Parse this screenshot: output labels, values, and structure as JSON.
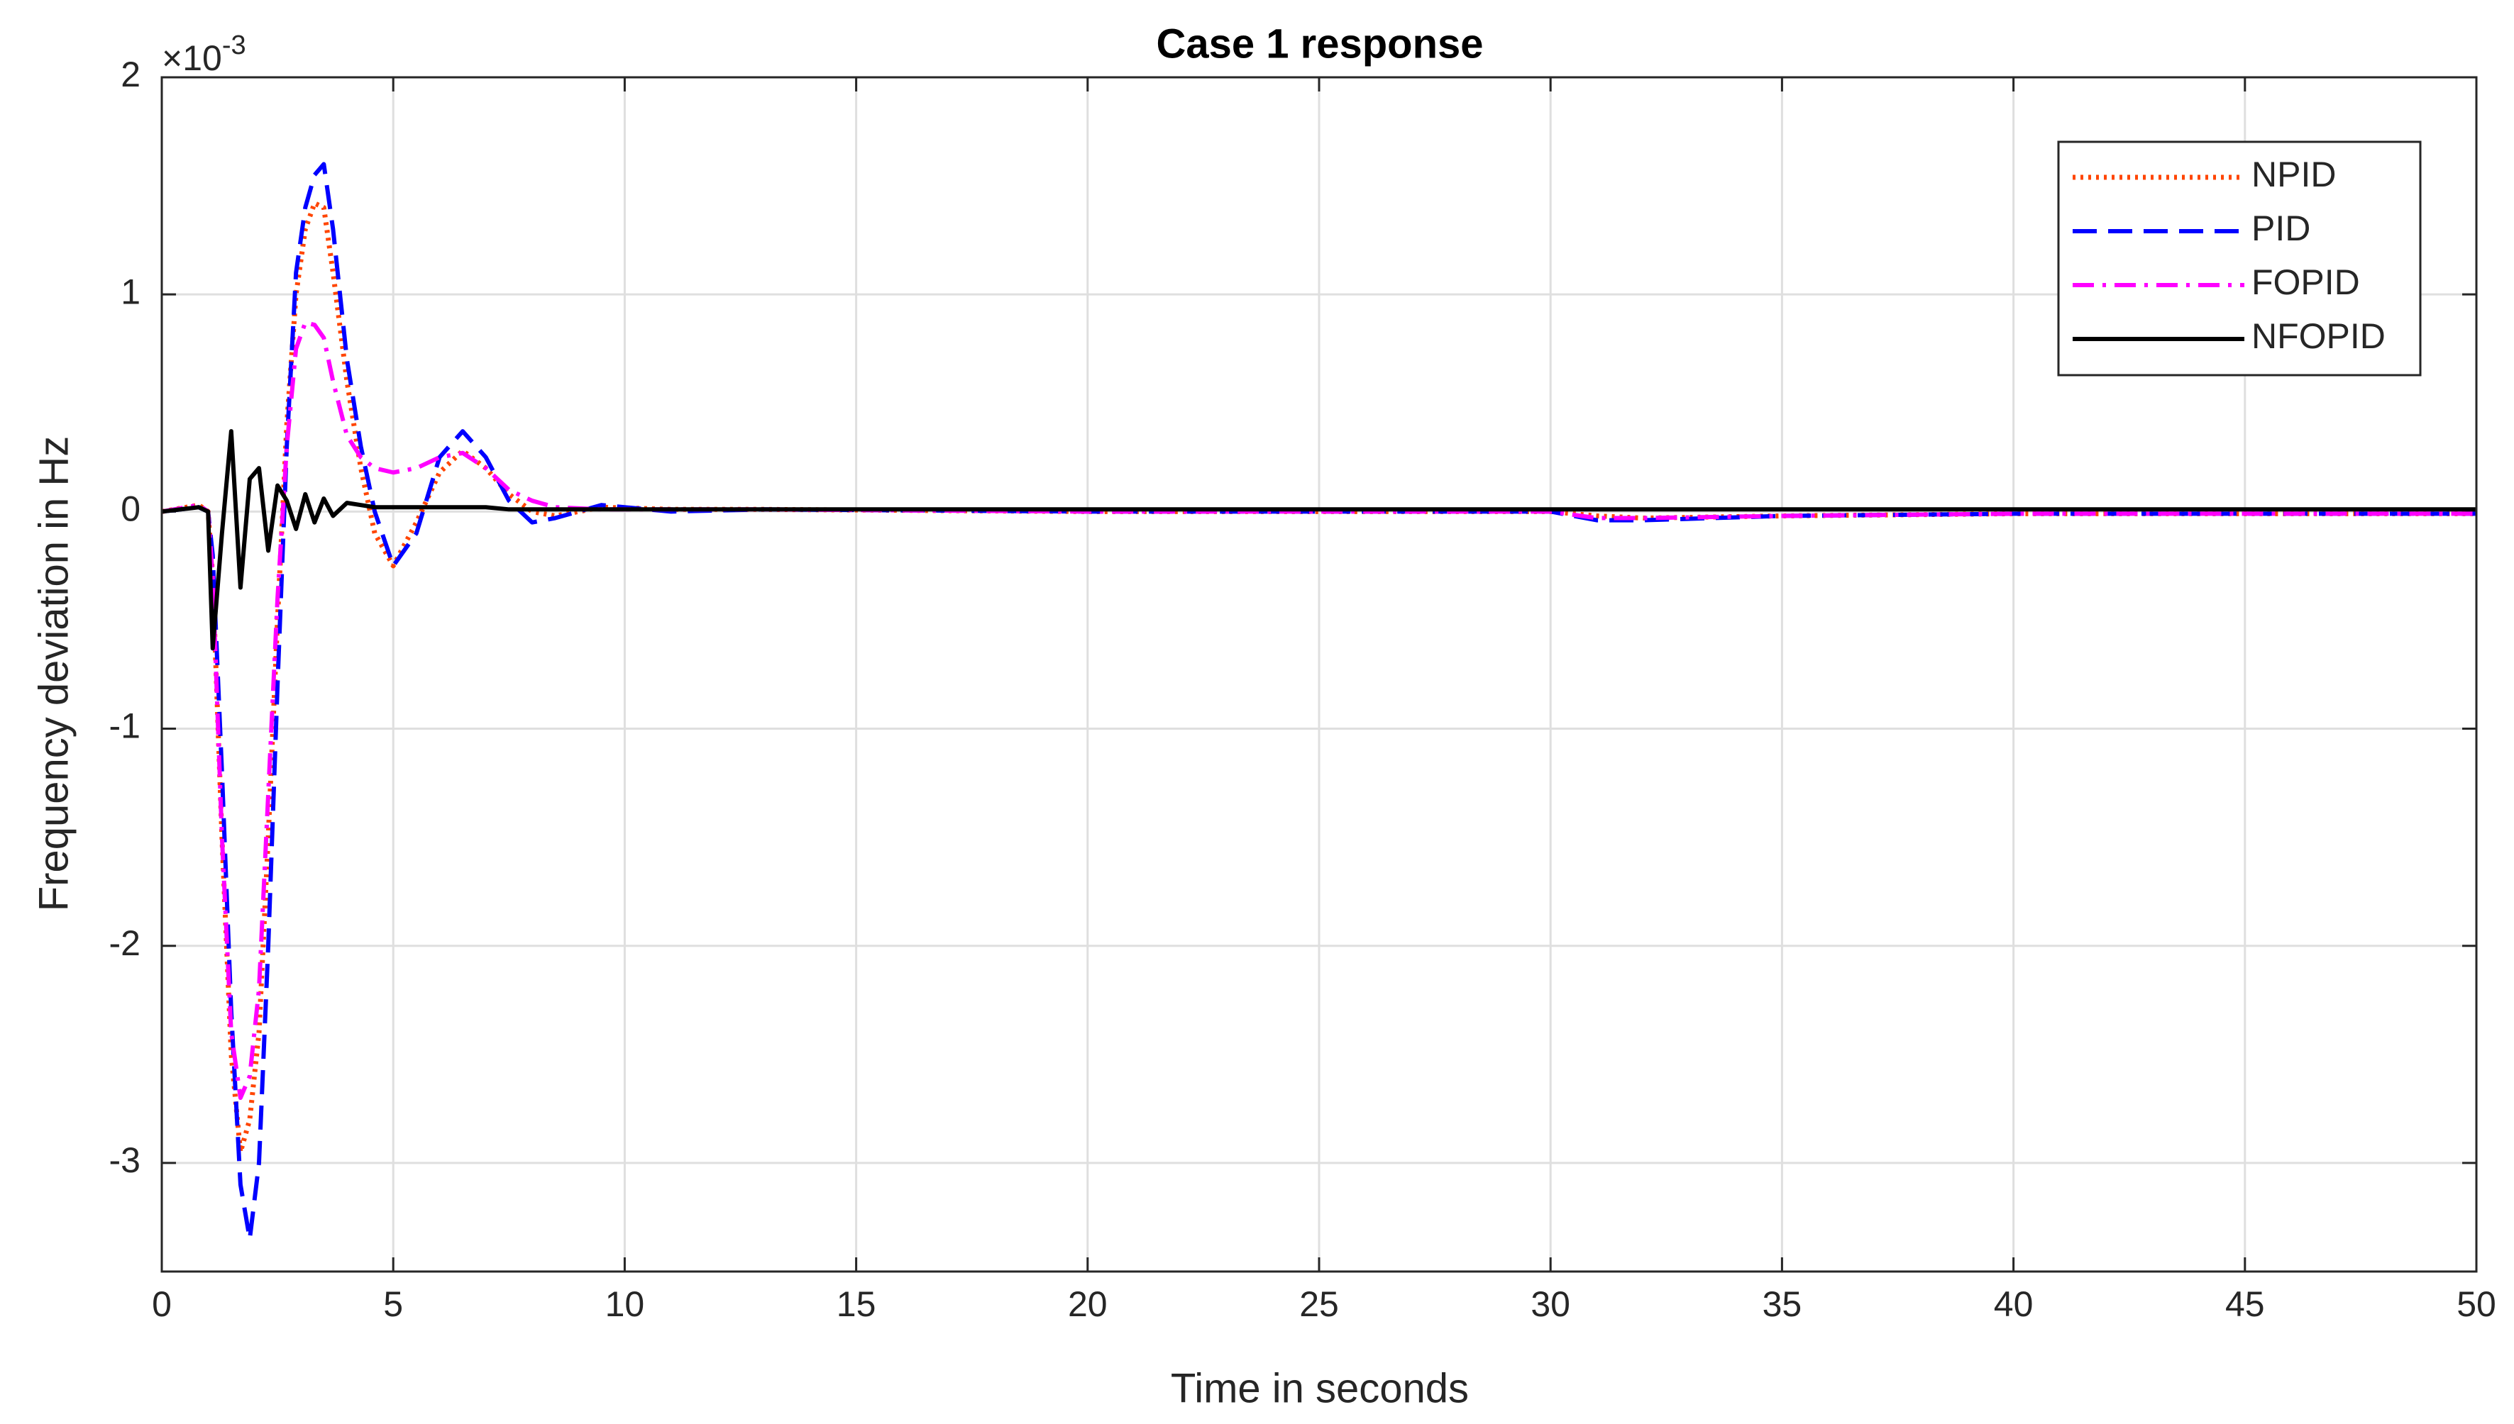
{
  "chart_data": {
    "type": "line",
    "title": "Case 1 response",
    "x_label": "Time in seconds",
    "y_label": "Frequency deviation in Hz",
    "y_multiplier": "×10",
    "y_exponent": "-3",
    "x": [
      0,
      0.8,
      1.0,
      1.1,
      1.3,
      1.5,
      1.7,
      1.9,
      2.1,
      2.3,
      2.5,
      2.7,
      2.9,
      3.1,
      3.3,
      3.5,
      3.7,
      4.0,
      4.3,
      4.6,
      5.0,
      5.5,
      6.0,
      6.5,
      7.0,
      7.5,
      8.0,
      8.5,
      9.5,
      11,
      13,
      20,
      30,
      31,
      32,
      35,
      40,
      50
    ],
    "series": [
      {
        "name": "NPID",
        "color": "#ff4500",
        "style": "dotted",
        "values": [
          0,
          0.03,
          0,
          -0.3,
          -1.5,
          -2.5,
          -2.95,
          -2.8,
          -2.4,
          -1.5,
          -0.5,
          0.4,
          1.0,
          1.3,
          1.42,
          1.4,
          1.1,
          0.6,
          0.2,
          -0.1,
          -0.25,
          -0.05,
          0.18,
          0.28,
          0.2,
          0.08,
          0,
          -0.02,
          0.02,
          0.01,
          0.01,
          0,
          0,
          -0.02,
          -0.03,
          -0.02,
          -0.01,
          -0.01
        ]
      },
      {
        "name": "PID",
        "color": "#0000ff",
        "style": "dashed",
        "values": [
          0,
          0.02,
          0,
          -0.2,
          -1.2,
          -2.3,
          -3.1,
          -3.35,
          -3.0,
          -2.0,
          -0.8,
          0.3,
          1.1,
          1.4,
          1.55,
          1.6,
          1.3,
          0.7,
          0.3,
          0,
          -0.25,
          -0.1,
          0.25,
          0.37,
          0.25,
          0.05,
          -0.05,
          -0.03,
          0.03,
          0,
          0.01,
          0,
          0,
          -0.04,
          -0.04,
          -0.02,
          -0.01,
          -0.01
        ]
      },
      {
        "name": "FOPID",
        "color": "#ff00ff",
        "style": "dashdot",
        "values": [
          0,
          0.03,
          0,
          -0.3,
          -1.5,
          -2.4,
          -2.7,
          -2.6,
          -2.2,
          -1.3,
          -0.4,
          0.3,
          0.75,
          0.87,
          0.86,
          0.8,
          0.6,
          0.35,
          0.25,
          0.2,
          0.18,
          0.2,
          0.25,
          0.27,
          0.2,
          0.1,
          0.05,
          0.02,
          0.01,
          0.01,
          0.01,
          0,
          0,
          -0.03,
          -0.03,
          -0.02,
          -0.01,
          -0.01
        ]
      },
      {
        "name": "NFOPID",
        "color": "#000000",
        "style": "solid",
        "values": [
          0,
          0.02,
          0,
          -0.63,
          -0.1,
          0.37,
          -0.35,
          0.15,
          0.2,
          -0.18,
          0.12,
          0.05,
          -0.08,
          0.08,
          -0.05,
          0.06,
          -0.02,
          0.04,
          0.03,
          0.02,
          0.02,
          0.02,
          0.02,
          0.02,
          0.02,
          0.01,
          0.01,
          0.01,
          0.01,
          0.01,
          0.01,
          0.01,
          0.01,
          0.01,
          0.01,
          0.01,
          0.01,
          0.01
        ]
      }
    ],
    "xlim": [
      0,
      50
    ],
    "xticks": [
      0,
      5,
      10,
      15,
      20,
      25,
      30,
      35,
      40,
      45,
      50
    ],
    "ylim": [
      -3.5,
      2
    ],
    "yticks": [
      -3,
      -2,
      -1,
      0,
      1,
      2
    ],
    "grid": true,
    "legend": "upper right"
  }
}
